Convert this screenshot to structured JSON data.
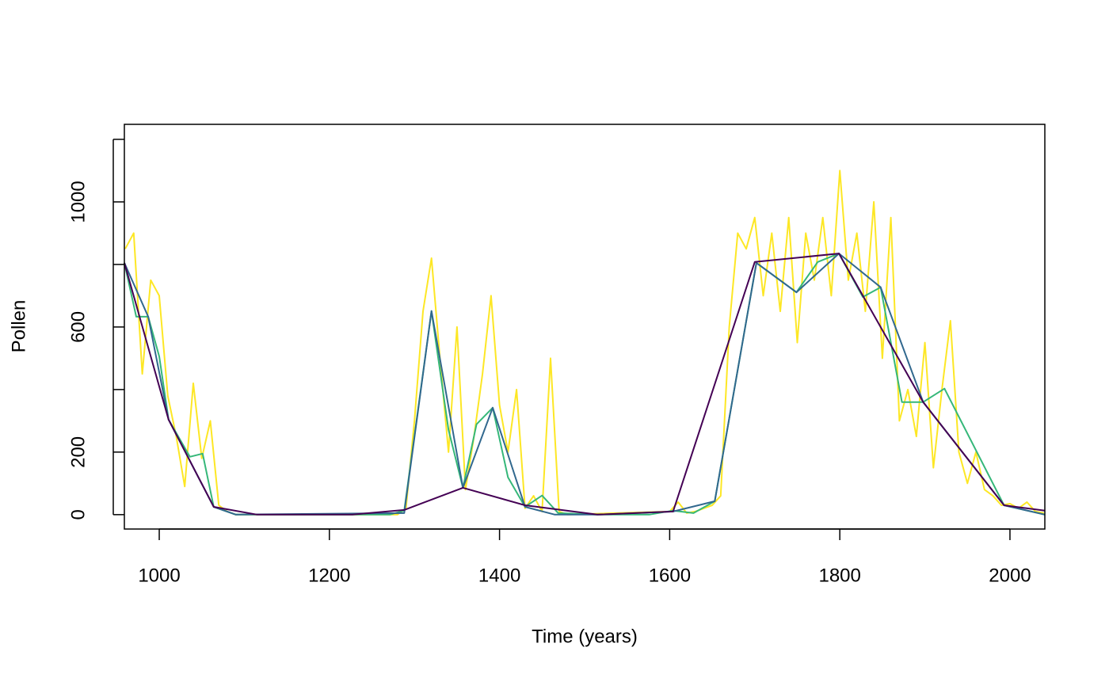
{
  "chart_data": {
    "type": "line",
    "x_label": "Time (years)",
    "y_label": "Pollen",
    "xlim": [
      959,
      2041
    ],
    "ylim": [
      -46,
      1248
    ],
    "xticks": [
      1000,
      1200,
      1400,
      1600,
      1800,
      2000
    ],
    "yticks": [
      0,
      200,
      600,
      1000
    ],
    "yticks_minor": [
      400,
      800,
      1200
    ],
    "series": [
      {
        "color": "#fde725",
        "x": [
          960,
          970,
          980,
          990,
          1000,
          1010,
          1020,
          1030,
          1040,
          1050,
          1060,
          1070,
          1080,
          1090,
          1280,
          1290,
          1300,
          1310,
          1320,
          1330,
          1340,
          1350,
          1360,
          1370,
          1380,
          1390,
          1400,
          1410,
          1420,
          1430,
          1440,
          1450,
          1460,
          1470,
          1480,
          1600,
          1610,
          1620,
          1630,
          1640,
          1650,
          1660,
          1670,
          1680,
          1690,
          1700,
          1710,
          1720,
          1730,
          1740,
          1750,
          1760,
          1770,
          1780,
          1790,
          1800,
          1810,
          1820,
          1830,
          1840,
          1850,
          1860,
          1870,
          1880,
          1890,
          1900,
          1910,
          1920,
          1930,
          1940,
          1950,
          1960,
          1970,
          1980,
          1990,
          2000,
          2010,
          2020,
          2030,
          2040
        ],
        "values": [
          850,
          900,
          450,
          750,
          700,
          380,
          250,
          90,
          420,
          180,
          300,
          30,
          10,
          0,
          0,
          20,
          300,
          650,
          820,
          500,
          200,
          600,
          80,
          250,
          450,
          700,
          350,
          200,
          400,
          20,
          60,
          10,
          500,
          10,
          0,
          10,
          40,
          5,
          10,
          20,
          30,
          60,
          600,
          900,
          850,
          950,
          700,
          900,
          650,
          950,
          550,
          900,
          750,
          950,
          700,
          1100,
          750,
          900,
          650,
          1000,
          500,
          950,
          300,
          400,
          250,
          550,
          150,
          400,
          620,
          200,
          100,
          200,
          80,
          60,
          30,
          35,
          20,
          40,
          10,
          5
        ]
      },
      {
        "color": "#35b779",
        "x": [
          959,
          973,
          987,
          1000,
          1011,
          1036,
          1051,
          1064,
          1090,
          1271,
          1288,
          1320,
          1340,
          1357,
          1373,
          1392,
          1410,
          1430,
          1450,
          1469,
          1515,
          1576,
          1604,
          1628,
          1653,
          1702,
          1749,
          1774,
          1799,
          1827,
          1848,
          1873,
          1898,
          1923,
          1993,
          2041
        ],
        "values": [
          805,
          633,
          633,
          506,
          304,
          185,
          195,
          25,
          0,
          0,
          13,
          651,
          271,
          86,
          289,
          342,
          119,
          25,
          61,
          5,
          0,
          0,
          13,
          5,
          43,
          805,
          711,
          808,
          835,
          696,
          727,
          360,
          360,
          403,
          30,
          0
        ]
      },
      {
        "color": "#31688e",
        "x": [
          959,
          987,
          1011,
          1064,
          1090,
          1288,
          1320,
          1357,
          1392,
          1430,
          1465,
          1515,
          1604,
          1653,
          1702,
          1749,
          1799,
          1848,
          1898,
          1993,
          2041
        ],
        "values": [
          805,
          633,
          304,
          25,
          0,
          5,
          651,
          86,
          342,
          25,
          0,
          0,
          10,
          43,
          805,
          711,
          835,
          727,
          360,
          30,
          0
        ]
      },
      {
        "color": "#440154",
        "x": [
          959,
          1011,
          1064,
          1115,
          1227,
          1288,
          1357,
          1430,
          1515,
          1604,
          1700,
          1799,
          1898,
          1993,
          2041
        ],
        "values": [
          805,
          304,
          25,
          0,
          0,
          15,
          86,
          30,
          0,
          10,
          808,
          835,
          360,
          30,
          13
        ]
      }
    ]
  }
}
